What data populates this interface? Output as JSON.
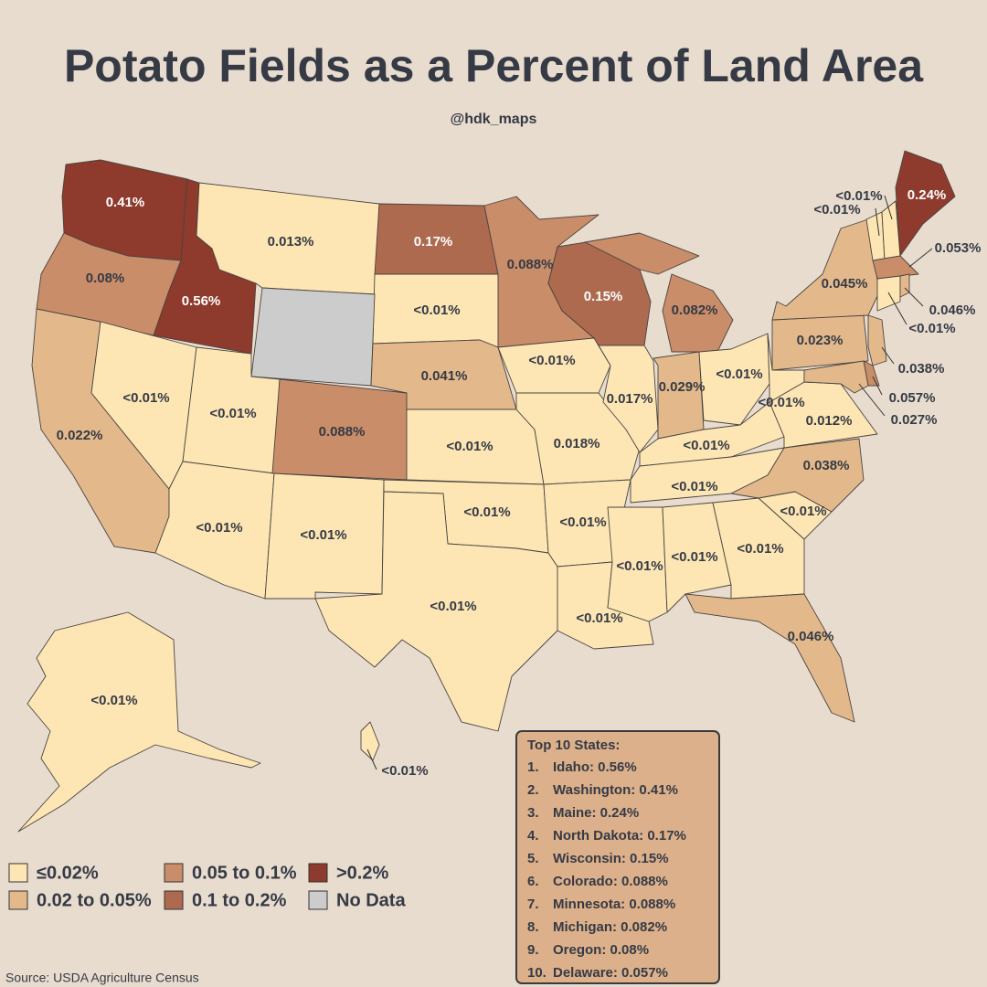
{
  "title": "Potato Fields as a Percent of Land Area",
  "subtitle": "@hdk_maps",
  "legend": [
    {
      "label": "≤0.02%",
      "color": "#fde6b4"
    },
    {
      "label": "0.05 to 0.1%",
      "color": "#c98d69"
    },
    {
      "label": ">0.2%",
      "color": "#8e3a2c"
    },
    {
      "label": "0.02 to 0.05%",
      "color": "#e3b98c"
    },
    {
      "label": "0.1 to 0.2%",
      "color": "#ad6a4f"
    },
    {
      "label": "No Data",
      "color": "#cccccc"
    }
  ],
  "map_labels": [
    "0.41%",
    "0.08%",
    "0.56%",
    "0.013%",
    "0.17%",
    "0.088%",
    "0.15%",
    "0.082%",
    "<0.01%",
    "0.041%",
    "0.022%",
    "<0.01%",
    "<0.01%",
    "0.088%",
    "<0.01%",
    "<0.01%",
    "0.018%",
    "0.017%",
    "0.029%",
    "<0.01%",
    "<0.01%",
    "0.012%",
    "<0.01%",
    "<0.01%",
    "0.038%",
    "<0.01%",
    "<0.01%",
    "<0.01%",
    "<0.01%",
    "<0.01%",
    "<0.01%",
    "<0.01%",
    "<0.01%",
    "<0.01%",
    "<0.01%",
    "0.046%",
    "0.023%",
    "0.045%",
    "0.24%",
    "<0.01%",
    "<0.01%",
    "0.053%",
    "0.046%",
    "<0.01%",
    "0.038%",
    "0.057%",
    "0.027%",
    "<0.01%",
    "<0.01%"
  ],
  "top10": {
    "title": "Top 10 States:",
    "items": [
      {
        "rank": "1.",
        "text": "Idaho: 0.56%"
      },
      {
        "rank": "2.",
        "text": "Washington: 0.41%"
      },
      {
        "rank": "3.",
        "text": "Maine: 0.24%"
      },
      {
        "rank": "4.",
        "text": "North Dakota: 0.17%"
      },
      {
        "rank": "5.",
        "text": "Wisconsin: 0.15%"
      },
      {
        "rank": "6.",
        "text": "Colorado: 0.088%"
      },
      {
        "rank": "7.",
        "text": "Minnesota: 0.088%"
      },
      {
        "rank": "8.",
        "text": "Michigan: 0.082%"
      },
      {
        "rank": "9.",
        "text": "Oregon: 0.08%"
      },
      {
        "rank": "10.",
        "text": "Delaware: 0.057%"
      }
    ]
  },
  "source": "Source: USDA Agriculture Census"
}
